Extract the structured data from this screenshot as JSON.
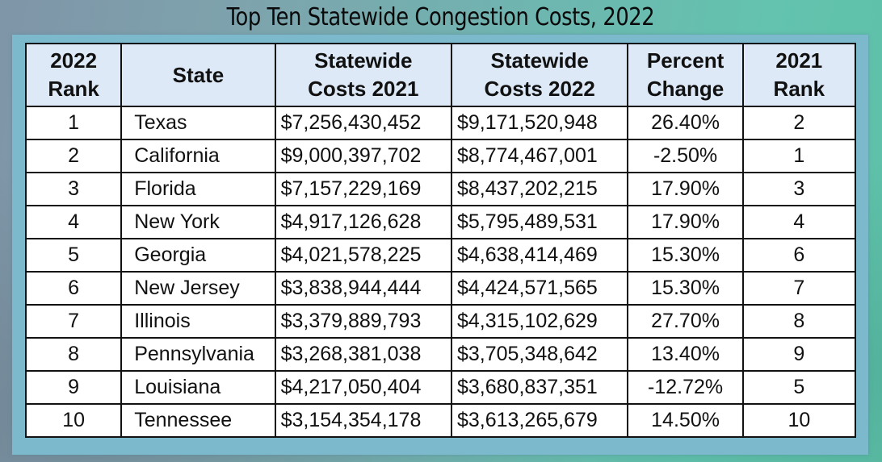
{
  "title": "Top Ten Statewide Congestion Costs, 2022",
  "table": {
    "headers": [
      {
        "line1": "2022",
        "line2": "Rank"
      },
      {
        "line1": "State",
        "line2": ""
      },
      {
        "line1": "Statewide",
        "line2": "Costs 2021"
      },
      {
        "line1": "Statewide",
        "line2": "Costs 2022"
      },
      {
        "line1": "Percent",
        "line2": "Change"
      },
      {
        "line1": "2021",
        "line2": "Rank"
      }
    ],
    "rows": [
      {
        "rank_2022": "1",
        "state": "Texas",
        "costs_2021": "$7,256,430,452",
        "costs_2022": "$9,171,520,948",
        "percent_change": "26.40%",
        "rank_2021": "2"
      },
      {
        "rank_2022": "2",
        "state": "California",
        "costs_2021": "$9,000,397,702",
        "costs_2022": "$8,774,467,001",
        "percent_change": "-2.50%",
        "rank_2021": "1"
      },
      {
        "rank_2022": "3",
        "state": "Florida",
        "costs_2021": "$7,157,229,169",
        "costs_2022": "$8,437,202,215",
        "percent_change": "17.90%",
        "rank_2021": "3"
      },
      {
        "rank_2022": "4",
        "state": "New York",
        "costs_2021": "$4,917,126,628",
        "costs_2022": "$5,795,489,531",
        "percent_change": "17.90%",
        "rank_2021": "4"
      },
      {
        "rank_2022": "5",
        "state": "Georgia",
        "costs_2021": "$4,021,578,225",
        "costs_2022": "$4,638,414,469",
        "percent_change": "15.30%",
        "rank_2021": "6"
      },
      {
        "rank_2022": "6",
        "state": "New Jersey",
        "costs_2021": "$3,838,944,444",
        "costs_2022": "$4,424,571,565",
        "percent_change": "15.30%",
        "rank_2021": "7"
      },
      {
        "rank_2022": "7",
        "state": "Illinois",
        "costs_2021": "$3,379,889,793",
        "costs_2022": "$4,315,102,629",
        "percent_change": "27.70%",
        "rank_2021": "8"
      },
      {
        "rank_2022": "8",
        "state": "Pennsylvania",
        "costs_2021": "$3,268,381,038",
        "costs_2022": "$3,705,348,642",
        "percent_change": "13.40%",
        "rank_2021": "9"
      },
      {
        "rank_2022": "9",
        "state": "Louisiana",
        "costs_2021": "$4,217,050,404",
        "costs_2022": "$3,680,837,351",
        "percent_change": "-12.72%",
        "rank_2021": "5"
      },
      {
        "rank_2022": "10",
        "state": "Tennessee",
        "costs_2021": "$3,154,354,178",
        "costs_2022": "$3,613,265,679",
        "percent_change": "14.50%",
        "rank_2021": "10"
      }
    ]
  },
  "colors": {
    "header_bg": "#dde9f6",
    "panel_bg": "#7cb9cc",
    "border": "#111111",
    "cell_bg": "#ffffff"
  }
}
